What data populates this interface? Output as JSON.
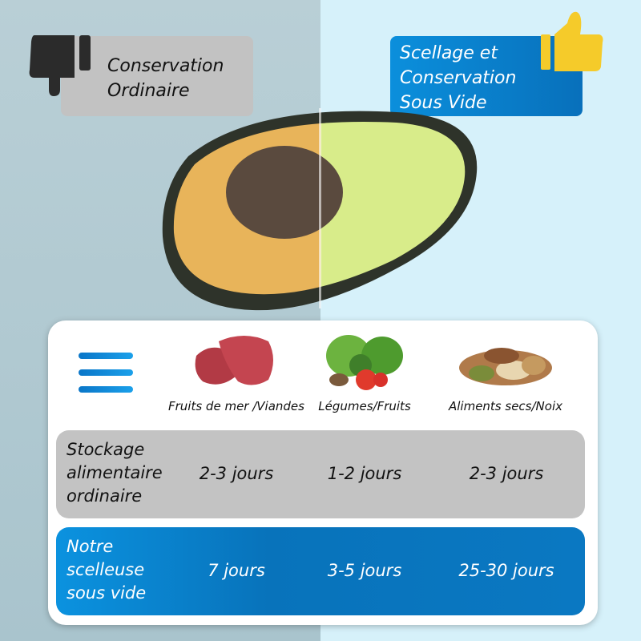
{
  "header": {
    "left_label": "Conservation Ordinaire",
    "right_label": "Scellage et Conservation Sous Vide",
    "left_icon": "thumbs-down-icon",
    "right_icon": "thumbs-up-icon"
  },
  "table": {
    "menu_icon": "menu-icon",
    "columns": [
      {
        "label": "Fruits de mer /Viandes",
        "image": "meat"
      },
      {
        "label": "Légumes/Fruits",
        "image": "vegetables"
      },
      {
        "label": "Aliments secs/Noix",
        "image": "nuts"
      }
    ],
    "rows": [
      {
        "label": "Stockage alimentaire ordinaire",
        "values": [
          "2-3 jours",
          "1-2 jours",
          "2-3 jours"
        ]
      },
      {
        "label": "Notre scelleuse sous vide",
        "values": [
          "7 jours",
          "3-5 jours",
          "25-30 jours"
        ]
      }
    ]
  },
  "colors": {
    "accent_blue": "#0873bb",
    "thumb_yellow": "#f5cb2a",
    "gray_row": "#c3c3c3"
  }
}
